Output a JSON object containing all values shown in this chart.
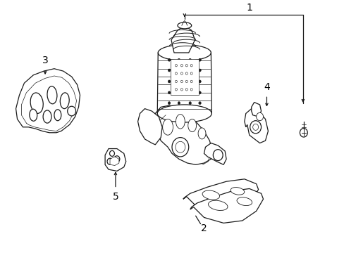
{
  "bg_color": "#ffffff",
  "line_color": "#1a1a1a",
  "text_color": "#000000",
  "fig_width": 4.89,
  "fig_height": 3.6,
  "dpi": 100,
  "label_fontsize": 10,
  "lw": 0.9
}
